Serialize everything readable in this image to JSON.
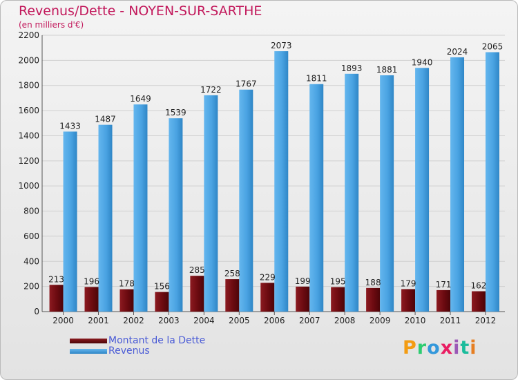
{
  "title": "Revenus/Dette - NOYEN-SUR-SARTHE",
  "subtitle": "(en milliers d'€)",
  "logo": "Proxiti",
  "colors": {
    "debt": "#6b0a10",
    "revenue": "#4aa3e2",
    "title": "#c2185b",
    "legend_text": "#4a5bd6"
  },
  "chart_data": {
    "type": "bar",
    "title": "Revenus/Dette - NOYEN-SUR-SARTHE",
    "subtitle": "(en milliers d'€)",
    "categories": [
      "2000",
      "2001",
      "2002",
      "2003",
      "2004",
      "2005",
      "2006",
      "2007",
      "2008",
      "2009",
      "2010",
      "2011",
      "2012"
    ],
    "series": [
      {
        "name": "Montant de la Dette",
        "values": [
          213,
          196,
          178,
          156,
          285,
          258,
          229,
          199,
          195,
          188,
          179,
          171,
          162
        ]
      },
      {
        "name": "Revenus",
        "values": [
          1433,
          1487,
          1649,
          1539,
          1722,
          1767,
          2073,
          1811,
          1893,
          1881,
          1940,
          2024,
          2065
        ]
      }
    ],
    "ylim": [
      0,
      2200
    ],
    "yticks": [
      0,
      200,
      400,
      600,
      800,
      1000,
      1200,
      1400,
      1600,
      1800,
      2000,
      2200
    ],
    "grid": true,
    "legend_position": "bottom-left"
  }
}
